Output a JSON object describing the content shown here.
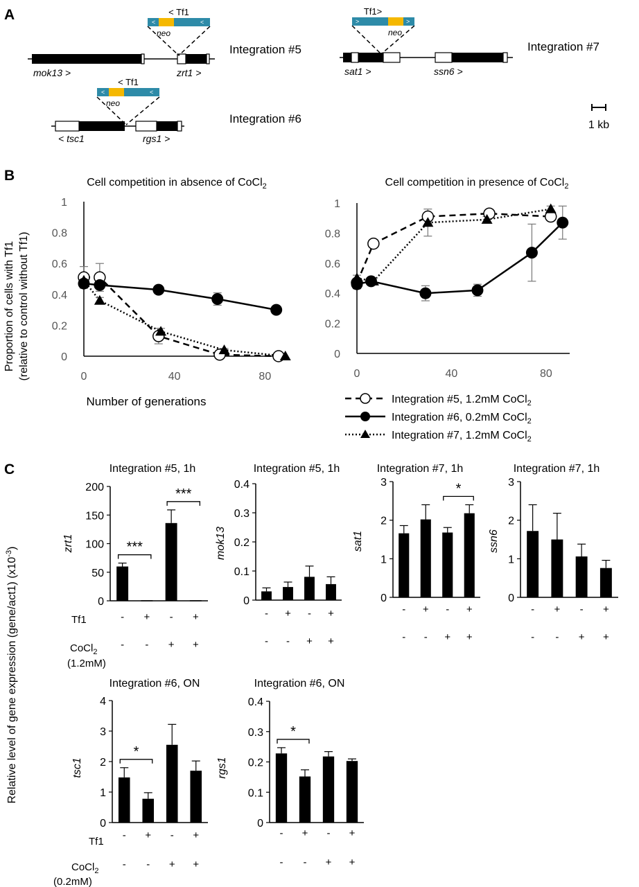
{
  "panel_labels": {
    "a": "A",
    "b": "B",
    "c": "C"
  },
  "panel_a": {
    "tf1_left": "< Tf1",
    "tf1_right": "Tf1>",
    "neo": "neo",
    "genes": {
      "mok13": "mok13 >",
      "zrt1": "zrt1 >",
      "tsc1": "< tsc1",
      "rgs1": "rgs1 >",
      "sat1": "sat1 >",
      "ssn6": "ssn6 >"
    },
    "integration5": "Integration #5",
    "integration6": "Integration #6",
    "integration7": "Integration #7",
    "scale": "1 kb",
    "colors": {
      "tf1_bar": "#2e8ba8",
      "neo_box": "#f5b800"
    }
  },
  "panel_b": {
    "ylabel_line1": "Proportion of cells with Tf1",
    "ylabel_line2": "(relative to control without Tf1)",
    "xlabel": "Number of generations",
    "legend": [
      "Integration #5, 1.2mM CoCl",
      "Integration #6, 0.2mM CoCl",
      "Integration #7, 1.2mM CoCl"
    ],
    "subscript_2": "2"
  },
  "panel_c": {
    "ylabel": "Relative level of gene expression (gene/act1) (x10",
    "ylabel_sup": "-3",
    "ylabel_close": ")",
    "tf1_label": "Tf1",
    "cocl2_label": "CoCl",
    "cocl2_sub": "2",
    "conc_high": "(1.2mM)",
    "conc_low": "(0.2mM)",
    "tf1_signs": [
      "-",
      "+",
      "-",
      "+"
    ],
    "cocl2_signs": [
      "-",
      "-",
      "+",
      "+"
    ]
  },
  "chart_data": [
    {
      "type": "line",
      "panel": "B-left",
      "title": "Cell competition in absence of CoCl2",
      "xlabel": "Number of generations",
      "ylabel": "Proportion of cells with Tf1 (relative to control without Tf1)",
      "xlim": [
        0,
        90
      ],
      "ylim": [
        0,
        1
      ],
      "xticks": [
        0,
        40,
        80
      ],
      "yticks": [
        0,
        0.2,
        0.4,
        0.6,
        0.8,
        1
      ],
      "ytick_labels": [
        "0",
        "0.2",
        "0.4",
        "0.6",
        "0.8",
        "1"
      ],
      "series": [
        {
          "name": "Integration #5, 1.2mM CoCl2",
          "marker": "open-circle",
          "line": "dashed",
          "x": [
            0,
            7,
            33,
            60,
            86
          ],
          "y": [
            0.51,
            0.51,
            0.13,
            0.01,
            0.0
          ],
          "err": [
            0.07,
            0.09,
            0.05,
            0.0,
            0.0
          ]
        },
        {
          "name": "Integration #6, 0.2mM CoCl2",
          "marker": "filled-circle",
          "line": "solid",
          "x": [
            0,
            7,
            33,
            59,
            85
          ],
          "y": [
            0.47,
            0.46,
            0.43,
            0.37,
            0.3
          ],
          "err": [
            0.02,
            0.02,
            0.02,
            0.04,
            0.01
          ]
        },
        {
          "name": "Integration #7, 1.2mM CoCl2",
          "marker": "filled-triangle",
          "line": "dotted",
          "x": [
            0,
            7,
            34,
            62,
            89
          ],
          "y": [
            0.49,
            0.36,
            0.16,
            0.04,
            0.0
          ],
          "err": [
            0.03,
            0.02,
            0.02,
            0.01,
            0.0
          ]
        }
      ]
    },
    {
      "type": "line",
      "panel": "B-right",
      "title": "Cell competition in presence of CoCl2",
      "xlim": [
        0,
        90
      ],
      "ylim": [
        0,
        1
      ],
      "xticks": [
        0,
        40,
        80
      ],
      "yticks": [
        0,
        0.2,
        0.4,
        0.6,
        0.8,
        1
      ],
      "ytick_labels": [
        "0",
        "0.2",
        "0.4",
        "0.6",
        "0.8",
        "1"
      ],
      "series": [
        {
          "name": "Integration #5, 1.2mM CoCl2",
          "marker": "open-circle",
          "line": "dashed",
          "x": [
            0,
            7,
            30,
            56,
            82
          ],
          "y": [
            0.47,
            0.73,
            0.91,
            0.93,
            0.91
          ],
          "err": [
            0.02,
            0.02,
            0.02,
            0.01,
            0.01
          ]
        },
        {
          "name": "Integration #6, 0.2mM CoCl2",
          "marker": "filled-circle",
          "line": "solid",
          "x": [
            0,
            6,
            29,
            51,
            74,
            87
          ],
          "y": [
            0.46,
            0.48,
            0.4,
            0.42,
            0.67,
            0.87
          ],
          "err": [
            0.03,
            0.02,
            0.05,
            0.04,
            0.19,
            0.11
          ]
        },
        {
          "name": "Integration #7, 1.2mM CoCl2",
          "marker": "filled-triangle",
          "line": "dotted",
          "x": [
            0,
            7,
            30,
            55,
            82
          ],
          "y": [
            0.5,
            0.48,
            0.87,
            0.89,
            0.96
          ],
          "err": [
            0.02,
            0.02,
            0.09,
            0.02,
            0.02
          ]
        }
      ]
    },
    {
      "type": "bar",
      "panel": "C1",
      "title": "Integration #5, 1h",
      "ylabel": "zrt1",
      "ylim": [
        0,
        200
      ],
      "yticks": [
        0,
        50,
        100,
        150,
        200
      ],
      "ytick_labels": [
        "0",
        "50",
        "100",
        "150",
        "200"
      ],
      "values": [
        60,
        1,
        136,
        1
      ],
      "err": [
        6,
        0,
        23,
        0
      ],
      "sig": [
        {
          "from": 0,
          "to": 1,
          "label": "***"
        },
        {
          "from": 2,
          "to": 3,
          "label": "***"
        }
      ]
    },
    {
      "type": "bar",
      "panel": "C2",
      "title": "Integration #5, 1h",
      "ylabel": "mok13",
      "ylim": [
        0,
        0.4
      ],
      "yticks": [
        0,
        0.1,
        0.2,
        0.3,
        0.4
      ],
      "ytick_labels": [
        "0",
        "0.1",
        "0.2",
        "0.3",
        "0.4"
      ],
      "values": [
        0.03,
        0.045,
        0.08,
        0.055
      ],
      "err": [
        0.012,
        0.017,
        0.037,
        0.025
      ],
      "sig": []
    },
    {
      "type": "bar",
      "panel": "C3",
      "title": "Integration #7, 1h",
      "ylabel": "sat1",
      "ylim": [
        0,
        3
      ],
      "yticks": [
        0,
        1,
        2,
        3
      ],
      "ytick_labels": [
        "0",
        "1",
        "2",
        "3"
      ],
      "values": [
        1.66,
        2.02,
        1.68,
        2.18
      ],
      "err": [
        0.2,
        0.38,
        0.13,
        0.22
      ],
      "sig": [
        {
          "from": 2,
          "to": 3,
          "label": "*"
        }
      ]
    },
    {
      "type": "bar",
      "panel": "C4",
      "title": "Integration #7, 1h",
      "ylabel": "ssn6",
      "ylim": [
        0,
        3
      ],
      "yticks": [
        0,
        1,
        2,
        3
      ],
      "ytick_labels": [
        "0",
        "1",
        "2",
        "3"
      ],
      "values": [
        1.72,
        1.5,
        1.06,
        0.76
      ],
      "err": [
        0.68,
        0.68,
        0.32,
        0.2
      ],
      "sig": []
    },
    {
      "type": "bar",
      "panel": "C5",
      "title": "Integration #6, ON",
      "ylabel": "tsc1",
      "ylim": [
        0,
        4
      ],
      "yticks": [
        0,
        1,
        2,
        3,
        4
      ],
      "ytick_labels": [
        "0",
        "1",
        "2",
        "3",
        "4"
      ],
      "values": [
        1.48,
        0.78,
        2.55,
        1.7
      ],
      "err": [
        0.32,
        0.2,
        0.67,
        0.32
      ],
      "sig": [
        {
          "from": 0,
          "to": 1,
          "label": "*"
        }
      ]
    },
    {
      "type": "bar",
      "panel": "C6",
      "title": "Integration #6, ON",
      "ylabel": "rgs1",
      "ylim": [
        0,
        0.4
      ],
      "yticks": [
        0,
        0.1,
        0.2,
        0.3,
        0.4
      ],
      "ytick_labels": [
        "0",
        "0.1",
        "0.2",
        "0.3",
        "0.4"
      ],
      "values": [
        0.228,
        0.152,
        0.218,
        0.203
      ],
      "err": [
        0.019,
        0.022,
        0.016,
        0.007
      ],
      "sig": [
        {
          "from": 0,
          "to": 1,
          "label": "*"
        }
      ]
    }
  ]
}
